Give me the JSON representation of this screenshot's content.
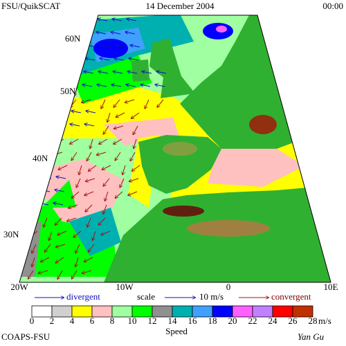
{
  "header": {
    "left": "FSU/QuikSCAT",
    "center": "14 December 2004",
    "right": "00:00"
  },
  "map": {
    "lat_labels": [
      "60N",
      "50N",
      "40N",
      "30N"
    ],
    "lon_labels": [
      "20W",
      "10W",
      "0",
      "10E"
    ]
  },
  "legend": {
    "divergent": "divergent",
    "scale": "scale",
    "scale_value": "10 m/s",
    "convergent": "convergent"
  },
  "colorbar": {
    "ticks": [
      0,
      2,
      4,
      6,
      8,
      10,
      12,
      14,
      16,
      18,
      20,
      22,
      24,
      26,
      28
    ],
    "unit": "m/s",
    "title": "Speed",
    "colors": [
      "#ffffff",
      "#d0d0d0",
      "#ffff00",
      "#ffc0c0",
      "#a0ffa0",
      "#00ff00",
      "#909090",
      "#00b0b0",
      "#40a0ff",
      "#0000ff",
      "#ff60ff",
      "#c080ff",
      "#ff0000",
      "#c03000"
    ]
  },
  "footer": {
    "left": "COAPS-FSU",
    "right": "Yan Gu"
  }
}
